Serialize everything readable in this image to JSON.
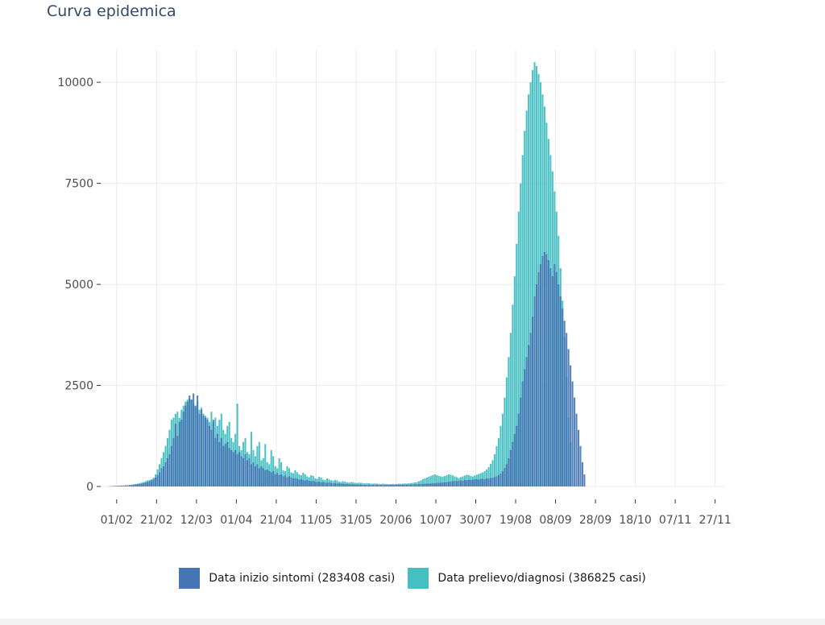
{
  "title": "Curva epidemica",
  "chart_data": {
    "type": "bar",
    "title": "Curva epidemica",
    "xlabel": "",
    "ylabel": "",
    "ylim": [
      0,
      10800
    ],
    "yticks": [
      0,
      2500,
      5000,
      7500,
      10000
    ],
    "ytick_labels": [
      "0",
      "2500",
      "5000",
      "7500",
      "10000"
    ],
    "x_range": [
      "2020-01-24",
      "2020-12-02"
    ],
    "xticks": [
      "2020-02-01",
      "2020-02-21",
      "2020-03-12",
      "2020-04-01",
      "2020-04-21",
      "2020-05-11",
      "2020-05-31",
      "2020-06-20",
      "2020-07-10",
      "2020-07-30",
      "2020-08-19",
      "2020-09-08",
      "2020-09-28",
      "2020-10-18",
      "2020-11-07",
      "2020-11-27"
    ],
    "xtick_labels": [
      "01/02",
      "21/02",
      "12/03",
      "01/04",
      "21/04",
      "11/05",
      "31/05",
      "20/06",
      "10/07",
      "30/07",
      "19/08",
      "08/09",
      "28/09",
      "18/10",
      "07/11",
      "27/11"
    ],
    "grid": true,
    "legend_position": "bottom",
    "bar_date_format": "daily",
    "series": [
      {
        "name": "Data inizio sintomi (283408 casi)",
        "color": "#4575b4",
        "start_date": "2020-01-28",
        "values": [
          5,
          10,
          12,
          15,
          18,
          20,
          22,
          25,
          28,
          30,
          35,
          40,
          45,
          50,
          55,
          60,
          70,
          80,
          95,
          110,
          130,
          150,
          180,
          220,
          280,
          350,
          450,
          500,
          600,
          700,
          800,
          1000,
          1200,
          1550,
          1250,
          1600,
          1650,
          1850,
          2000,
          2100,
          2250,
          2150,
          2300,
          2000,
          2250,
          1800,
          1900,
          1750,
          1700,
          1650,
          1500,
          1400,
          1650,
          1200,
          1300,
          1100,
          1200,
          1000,
          1050,
          1100,
          950,
          900,
          850,
          900,
          800,
          850,
          750,
          700,
          800,
          650,
          700,
          550,
          600,
          500,
          550,
          450,
          500,
          450,
          400,
          420,
          380,
          350,
          380,
          300,
          330,
          280,
          300,
          250,
          270,
          230,
          250,
          220,
          200,
          210,
          190,
          170,
          180,
          160,
          150,
          160,
          140,
          130,
          140,
          120,
          110,
          120,
          100,
          110,
          95,
          90,
          100,
          85,
          80,
          85,
          75,
          70,
          75,
          65,
          60,
          65,
          55,
          50,
          55,
          50,
          45,
          50,
          45,
          40,
          45,
          40,
          38,
          40,
          35,
          40,
          38,
          36,
          40,
          35,
          38,
          40,
          35,
          42,
          38,
          40,
          45,
          40,
          45,
          42,
          48,
          45,
          50,
          48,
          55,
          52,
          60,
          58,
          65,
          62,
          70,
          68,
          75,
          72,
          80,
          78,
          85,
          90,
          95,
          100,
          105,
          110,
          115,
          120,
          130,
          140,
          130,
          145,
          150,
          140,
          160,
          155,
          165,
          160,
          170,
          175,
          180,
          170,
          185,
          190,
          180,
          200,
          195,
          210,
          220,
          230,
          250,
          280,
          320,
          380,
          460,
          550,
          700,
          900,
          1100,
          1300,
          1500,
          1800,
          2200,
          2600,
          2900,
          3200,
          3500,
          3800,
          4200,
          4700,
          5000,
          5300,
          5500,
          5700,
          5800,
          5750,
          5600,
          5400,
          5200,
          5500,
          5300,
          5000,
          4700,
          4400,
          4100,
          3800,
          3400,
          3000,
          2600,
          2200,
          1800,
          1400,
          1000,
          600,
          300
        ]
      },
      {
        "name": "Data prelievo/diagnosi (386825 casi)",
        "color": "#45bfc2",
        "start_date": "2020-01-28",
        "values": [
          3,
          5,
          6,
          8,
          10,
          12,
          14,
          16,
          20,
          25,
          30,
          40,
          50,
          60,
          70,
          80,
          95,
          110,
          130,
          150,
          160,
          180,
          220,
          300,
          420,
          550,
          700,
          850,
          1000,
          1200,
          1400,
          1650,
          1700,
          1800,
          1850,
          1700,
          1900,
          2000,
          2100,
          2150,
          2200,
          2150,
          2050,
          1950,
          2100,
          1900,
          1950,
          1800,
          1750,
          1700,
          1600,
          1850,
          1600,
          1700,
          1500,
          1650,
          1800,
          1400,
          1300,
          1500,
          1600,
          1200,
          1100,
          1300,
          2050,
          1000,
          900,
          1100,
          1200,
          850,
          800,
          1350,
          900,
          750,
          1000,
          1100,
          650,
          700,
          1050,
          600,
          550,
          900,
          750,
          500,
          450,
          700,
          600,
          400,
          380,
          500,
          450,
          350,
          330,
          400,
          350,
          300,
          280,
          340,
          300,
          250,
          230,
          280,
          260,
          200,
          190,
          240,
          220,
          170,
          160,
          200,
          180,
          150,
          140,
          160,
          150,
          120,
          110,
          130,
          120,
          100,
          95,
          110,
          105,
          90,
          85,
          95,
          90,
          80,
          75,
          85,
          80,
          70,
          70,
          75,
          70,
          65,
          60,
          70,
          65,
          60,
          55,
          60,
          65,
          55,
          60,
          70,
          65,
          70,
          75,
          70,
          80,
          85,
          90,
          100,
          110,
          130,
          150,
          180,
          200,
          220,
          240,
          260,
          280,
          300,
          280,
          260,
          250,
          240,
          260,
          280,
          300,
          290,
          270,
          250,
          230,
          210,
          230,
          250,
          270,
          290,
          280,
          260,
          250,
          270,
          290,
          310,
          330,
          350,
          380,
          420,
          480,
          560,
          650,
          800,
          1000,
          1200,
          1500,
          1800,
          2200,
          2700,
          3200,
          3800,
          4500,
          5200,
          6000,
          6800,
          7500,
          8200,
          8800,
          9300,
          9700,
          10000,
          10300,
          10500,
          10400,
          10200,
          10000,
          9700,
          9400,
          9000,
          8600,
          8200,
          7800,
          7300,
          6800,
          6200,
          5400,
          4600,
          3700,
          2700,
          1700,
          1100
        ]
      }
    ]
  },
  "legend": {
    "items": [
      {
        "label": "Data inizio sintomi (283408 casi)",
        "color": "#4575b4"
      },
      {
        "label": "Data prelievo/diagnosi (386825 casi)",
        "color": "#45bfc2"
      }
    ]
  }
}
